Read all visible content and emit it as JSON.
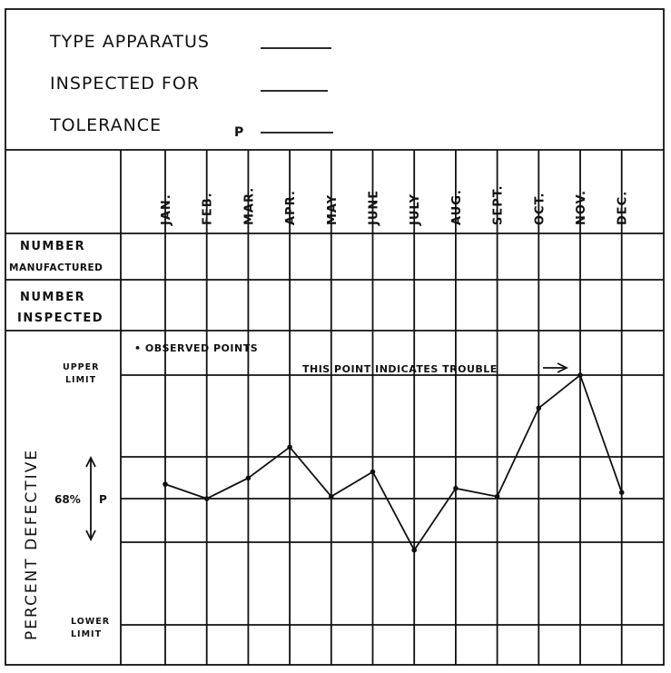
{
  "header": {
    "type_label": "TYPE APPARATUS",
    "inspected_label": "INSPECTED FOR",
    "tolerance_label": "TOLERANCE",
    "tolerance_symbol": "P"
  },
  "rows": {
    "manufactured_line1": "NUMBER",
    "manufactured_line2": "MANUFACTURED",
    "inspected_line1": "NUMBER",
    "inspected_line2": "INSPECTED"
  },
  "chart_data": {
    "type": "line",
    "categories": [
      "JAN.",
      "FEB.",
      "MAR.",
      "APR.",
      "MAY",
      "JUNE",
      "JULY",
      "AUG.",
      "SEPT.",
      "OCT.",
      "NOV.",
      "DEC."
    ],
    "series": [
      {
        "values": [
          0.35,
          0.0,
          0.5,
          1.25,
          0.05,
          0.65,
          -1.25,
          0.25,
          0.05,
          2.2,
          3.0,
          0.15
        ]
      }
    ],
    "ylabel": "PERCENT DEFECTIVE",
    "ylim": [
      -3,
      3.7
    ],
    "upper_limit_value": 3,
    "lower_limit_value": -3,
    "center_value": 0,
    "labels": {
      "upper_1": "UPPER",
      "upper_2": "LIMIT",
      "lower_1": "LOWER",
      "lower_2": "LIMIT",
      "center_pct": "68%",
      "center_p": "P",
      "legend": "• OBSERVED POINTS",
      "trouble": "THIS POINT INDICATES TROUBLE"
    },
    "grid": true
  }
}
